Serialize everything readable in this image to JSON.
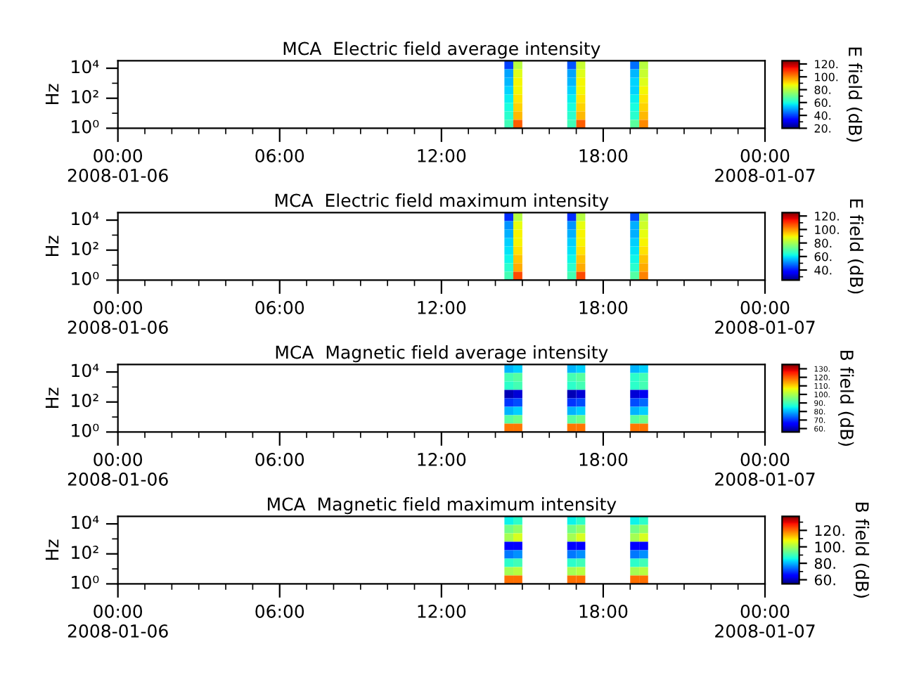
{
  "chart_data": [
    {
      "type": "heatmap",
      "title": "MCA  Electric field average intensity",
      "ylabel": "Hz",
      "clabel": "E field (dB)",
      "log": true,
      "grid": false,
      "x": [
        14.5,
        14.83,
        15.17,
        15.5,
        15.83,
        16.17,
        16.5,
        16.83,
        17.17,
        17.5,
        17.83,
        18.17,
        18.5,
        18.83,
        19.17,
        19.5
      ],
      "xlim": [
        0,
        24
      ],
      "ylim": [
        1,
        31623
      ],
      "xticks": [
        {
          "value": 0,
          "label": "00:00\n2008-01-06"
        },
        {
          "value": 1,
          "label": null
        },
        {
          "value": 2,
          "label": null
        },
        {
          "value": 3,
          "label": null
        },
        {
          "value": 4,
          "label": null
        },
        {
          "value": 5,
          "label": null
        },
        {
          "value": 6,
          "label": "06:00"
        },
        {
          "value": 7,
          "label": null
        },
        {
          "value": 8,
          "label": null
        },
        {
          "value": 9,
          "label": null
        },
        {
          "value": 10,
          "label": null
        },
        {
          "value": 11,
          "label": null
        },
        {
          "value": 12,
          "label": "12:00"
        },
        {
          "value": 13,
          "label": null
        },
        {
          "value": 14,
          "label": null
        },
        {
          "value": 15,
          "label": null
        },
        {
          "value": 16,
          "label": null
        },
        {
          "value": 17,
          "label": null
        },
        {
          "value": 18,
          "label": "18:00"
        },
        {
          "value": 19,
          "label": null
        },
        {
          "value": 20,
          "label": null
        },
        {
          "value": 21,
          "label": null
        },
        {
          "value": 22,
          "label": null
        },
        {
          "value": 23,
          "label": null
        },
        {
          "value": 24,
          "label": "00:00\n2008-01-07"
        }
      ],
      "yticks": [
        {
          "value": 1,
          "label": "10⁰"
        },
        {
          "value": 10,
          "label": null
        },
        {
          "value": 100,
          "label": "10²"
        },
        {
          "value": 1000,
          "label": null
        },
        {
          "value": 10000,
          "label": "10⁴"
        }
      ],
      "clim": [
        20,
        125
      ],
      "cticks": [
        {
          "value": 20,
          "label": "20."
        },
        {
          "value": 30,
          "label": null
        },
        {
          "value": 40,
          "label": "40."
        },
        {
          "value": 50,
          "label": null
        },
        {
          "value": 60,
          "label": "60."
        },
        {
          "value": 70,
          "label": null
        },
        {
          "value": 80,
          "label": "80."
        },
        {
          "value": 90,
          "label": null
        },
        {
          "value": 100,
          "label": "100."
        },
        {
          "value": 110,
          "label": null
        },
        {
          "value": 120,
          "label": "120."
        }
      ],
      "cells": [
        [
          40,
          80,
          null,
          null,
          null,
          null,
          null,
          42,
          82,
          null,
          null,
          null,
          null,
          null,
          45,
          80
        ],
        [
          50,
          85,
          null,
          null,
          null,
          null,
          null,
          50,
          85,
          null,
          null,
          null,
          null,
          null,
          52,
          82
        ],
        [
          52,
          88,
          null,
          null,
          null,
          null,
          null,
          52,
          88,
          null,
          null,
          null,
          null,
          null,
          55,
          85
        ],
        [
          55,
          88,
          null,
          null,
          null,
          null,
          null,
          55,
          88,
          null,
          null,
          null,
          null,
          null,
          55,
          88
        ],
        [
          58,
          90,
          null,
          null,
          null,
          null,
          null,
          58,
          90,
          null,
          null,
          null,
          null,
          null,
          58,
          90
        ],
        [
          60,
          92,
          null,
          null,
          null,
          null,
          null,
          60,
          92,
          null,
          null,
          null,
          null,
          null,
          60,
          92
        ],
        [
          62,
          95,
          null,
          null,
          null,
          null,
          null,
          62,
          95,
          null,
          null,
          null,
          null,
          null,
          62,
          95
        ],
        [
          65,
          105,
          null,
          null,
          null,
          null,
          null,
          65,
          105,
          null,
          null,
          null,
          null,
          null,
          68,
          100
        ]
      ]
    },
    {
      "type": "heatmap",
      "title": "MCA  Electric field maximum intensity",
      "ylabel": "Hz",
      "clabel": "E field (dB)",
      "log": true,
      "grid": false,
      "x": [
        14.5,
        14.83,
        15.17,
        15.5,
        15.83,
        16.17,
        16.5,
        16.83,
        17.17,
        17.5,
        17.83,
        18.17,
        18.5,
        18.83,
        19.17,
        19.5
      ],
      "xlim": [
        0,
        24
      ],
      "ylim": [
        1,
        31623
      ],
      "xticks": [
        {
          "value": 0,
          "label": "00:00\n2008-01-06"
        },
        {
          "value": 1,
          "label": null
        },
        {
          "value": 2,
          "label": null
        },
        {
          "value": 3,
          "label": null
        },
        {
          "value": 4,
          "label": null
        },
        {
          "value": 5,
          "label": null
        },
        {
          "value": 6,
          "label": "06:00"
        },
        {
          "value": 7,
          "label": null
        },
        {
          "value": 8,
          "label": null
        },
        {
          "value": 9,
          "label": null
        },
        {
          "value": 10,
          "label": null
        },
        {
          "value": 11,
          "label": null
        },
        {
          "value": 12,
          "label": "12:00"
        },
        {
          "value": 13,
          "label": null
        },
        {
          "value": 14,
          "label": null
        },
        {
          "value": 15,
          "label": null
        },
        {
          "value": 16,
          "label": null
        },
        {
          "value": 17,
          "label": null
        },
        {
          "value": 18,
          "label": "18:00"
        },
        {
          "value": 19,
          "label": null
        },
        {
          "value": 20,
          "label": null
        },
        {
          "value": 21,
          "label": null
        },
        {
          "value": 22,
          "label": null
        },
        {
          "value": 23,
          "label": null
        },
        {
          "value": 24,
          "label": "00:00\n2008-01-07"
        }
      ],
      "yticks": [
        {
          "value": 1,
          "label": "10⁰"
        },
        {
          "value": 10,
          "label": null
        },
        {
          "value": 100,
          "label": "10²"
        },
        {
          "value": 1000,
          "label": null
        },
        {
          "value": 10000,
          "label": "10⁴"
        }
      ],
      "clim": [
        25,
        125
      ],
      "cticks": [
        {
          "value": 30,
          "label": null
        },
        {
          "value": 40,
          "label": "40."
        },
        {
          "value": 50,
          "label": null
        },
        {
          "value": 60,
          "label": "60."
        },
        {
          "value": 70,
          "label": null
        },
        {
          "value": 80,
          "label": "80."
        },
        {
          "value": 90,
          "label": null
        },
        {
          "value": 100,
          "label": "100."
        },
        {
          "value": 110,
          "label": null
        },
        {
          "value": 120,
          "label": "120."
        }
      ],
      "cells": [
        [
          42,
          82,
          null,
          null,
          null,
          null,
          null,
          42,
          82,
          null,
          null,
          null,
          null,
          null,
          45,
          82
        ],
        [
          52,
          88,
          null,
          null,
          null,
          null,
          null,
          52,
          88,
          null,
          null,
          null,
          null,
          null,
          55,
          85
        ],
        [
          55,
          90,
          null,
          null,
          null,
          null,
          null,
          55,
          90,
          null,
          null,
          null,
          null,
          null,
          55,
          88
        ],
        [
          58,
          90,
          null,
          null,
          null,
          null,
          null,
          58,
          90,
          null,
          null,
          null,
          null,
          null,
          58,
          90
        ],
        [
          60,
          92,
          null,
          null,
          null,
          null,
          null,
          60,
          92,
          null,
          null,
          null,
          null,
          null,
          60,
          92
        ],
        [
          62,
          95,
          null,
          null,
          null,
          null,
          null,
          62,
          95,
          null,
          null,
          null,
          null,
          null,
          62,
          95
        ],
        [
          65,
          98,
          null,
          null,
          null,
          null,
          null,
          65,
          98,
          null,
          null,
          null,
          null,
          null,
          65,
          98
        ],
        [
          68,
          108,
          null,
          null,
          null,
          null,
          null,
          68,
          108,
          null,
          null,
          null,
          null,
          null,
          70,
          102
        ]
      ]
    },
    {
      "type": "heatmap",
      "title": "MCA  Magnetic field average intensity",
      "ylabel": "Hz",
      "clabel": "B field (dB)",
      "log": true,
      "grid": false,
      "x": [
        14.5,
        14.83,
        15.17,
        15.5,
        15.83,
        16.17,
        16.5,
        16.83,
        17.17,
        17.5,
        17.83,
        18.17,
        18.5,
        18.83,
        19.17,
        19.5
      ],
      "xlim": [
        0,
        24
      ],
      "ylim": [
        1,
        31623
      ],
      "xticks": [
        {
          "value": 0,
          "label": "00:00\n2008-01-06"
        },
        {
          "value": 1,
          "label": null
        },
        {
          "value": 2,
          "label": null
        },
        {
          "value": 3,
          "label": null
        },
        {
          "value": 4,
          "label": null
        },
        {
          "value": 5,
          "label": null
        },
        {
          "value": 6,
          "label": "06:00"
        },
        {
          "value": 7,
          "label": null
        },
        {
          "value": 8,
          "label": null
        },
        {
          "value": 9,
          "label": null
        },
        {
          "value": 10,
          "label": null
        },
        {
          "value": 11,
          "label": null
        },
        {
          "value": 12,
          "label": "12:00"
        },
        {
          "value": 13,
          "label": null
        },
        {
          "value": 14,
          "label": null
        },
        {
          "value": 15,
          "label": null
        },
        {
          "value": 16,
          "label": null
        },
        {
          "value": 17,
          "label": null
        },
        {
          "value": 18,
          "label": "18:00"
        },
        {
          "value": 19,
          "label": null
        },
        {
          "value": 20,
          "label": null
        },
        {
          "value": 21,
          "label": null
        },
        {
          "value": 22,
          "label": null
        },
        {
          "value": 23,
          "label": null
        },
        {
          "value": 24,
          "label": "00:00\n2008-01-07"
        }
      ],
      "yticks": [
        {
          "value": 1,
          "label": "10⁰"
        },
        {
          "value": 10,
          "label": null
        },
        {
          "value": 100,
          "label": "10²"
        },
        {
          "value": 1000,
          "label": null
        },
        {
          "value": 10000,
          "label": "10⁴"
        }
      ],
      "clim": [
        56,
        135
      ],
      "cticks": [
        {
          "value": 60,
          "label": "60."
        },
        {
          "value": 70,
          "label": "70."
        },
        {
          "value": 80,
          "label": "80."
        },
        {
          "value": 90,
          "label": "90."
        },
        {
          "value": 100,
          "label": "100."
        },
        {
          "value": 110,
          "label": "110."
        },
        {
          "value": 120,
          "label": "120."
        },
        {
          "value": 130,
          "label": "130."
        }
      ],
      "cells": [
        [
          80,
          82,
          null,
          null,
          null,
          null,
          null,
          80,
          82,
          null,
          null,
          null,
          null,
          null,
          80,
          82
        ],
        [
          90,
          92,
          null,
          null,
          null,
          null,
          null,
          90,
          92,
          null,
          null,
          null,
          null,
          null,
          88,
          90
        ],
        [
          88,
          90,
          null,
          null,
          null,
          null,
          null,
          88,
          90,
          null,
          null,
          null,
          null,
          null,
          88,
          90
        ],
        [
          60,
          62,
          null,
          null,
          null,
          null,
          null,
          60,
          62,
          null,
          null,
          null,
          null,
          null,
          62,
          64
        ],
        [
          70,
          72,
          null,
          null,
          null,
          null,
          null,
          70,
          72,
          null,
          null,
          null,
          null,
          null,
          72,
          74
        ],
        [
          80,
          82,
          null,
          null,
          null,
          null,
          null,
          80,
          82,
          null,
          null,
          null,
          null,
          null,
          80,
          82
        ],
        [
          92,
          94,
          null,
          null,
          null,
          null,
          null,
          92,
          94,
          null,
          null,
          null,
          null,
          null,
          92,
          94
        ],
        [
          118,
          118,
          null,
          null,
          null,
          null,
          null,
          118,
          118,
          null,
          null,
          null,
          null,
          null,
          118,
          118
        ]
      ]
    },
    {
      "type": "heatmap",
      "title": "MCA  Magnetic field maximum intensity",
      "ylabel": "Hz",
      "clabel": "B field (dB)",
      "log": true,
      "grid": false,
      "x": [
        14.5,
        14.83,
        15.17,
        15.5,
        15.83,
        16.17,
        16.5,
        16.83,
        17.17,
        17.5,
        17.83,
        18.17,
        18.5,
        18.83,
        19.17,
        19.5
      ],
      "xlim": [
        0,
        24
      ],
      "ylim": [
        1,
        31623
      ],
      "xticks": [
        {
          "value": 0,
          "label": "00:00\n2008-01-06"
        },
        {
          "value": 1,
          "label": null
        },
        {
          "value": 2,
          "label": null
        },
        {
          "value": 3,
          "label": null
        },
        {
          "value": 4,
          "label": null
        },
        {
          "value": 5,
          "label": null
        },
        {
          "value": 6,
          "label": "06:00"
        },
        {
          "value": 7,
          "label": null
        },
        {
          "value": 8,
          "label": null
        },
        {
          "value": 9,
          "label": null
        },
        {
          "value": 10,
          "label": null
        },
        {
          "value": 11,
          "label": null
        },
        {
          "value": 12,
          "label": "12:00"
        },
        {
          "value": 13,
          "label": null
        },
        {
          "value": 14,
          "label": null
        },
        {
          "value": 15,
          "label": null
        },
        {
          "value": 16,
          "label": null
        },
        {
          "value": 17,
          "label": null
        },
        {
          "value": 18,
          "label": "18:00"
        },
        {
          "value": 19,
          "label": null
        },
        {
          "value": 20,
          "label": null
        },
        {
          "value": 21,
          "label": null
        },
        {
          "value": 22,
          "label": null
        },
        {
          "value": 23,
          "label": null
        },
        {
          "value": 24,
          "label": "00:00\n2008-01-07"
        }
      ],
      "yticks": [
        {
          "value": 1,
          "label": "10⁰"
        },
        {
          "value": 10,
          "label": null
        },
        {
          "value": 100,
          "label": "10²"
        },
        {
          "value": 1000,
          "label": null
        },
        {
          "value": 10000,
          "label": "10⁴"
        }
      ],
      "clim": [
        55,
        137
      ],
      "cticks": [
        {
          "value": 60,
          "label": "60."
        },
        {
          "value": 70,
          "label": null
        },
        {
          "value": 80,
          "label": "80."
        },
        {
          "value": 90,
          "label": null
        },
        {
          "value": 100,
          "label": "100."
        },
        {
          "value": 110,
          "label": null
        },
        {
          "value": 120,
          "label": "120."
        },
        {
          "value": 130,
          "label": null
        }
      ],
      "cells": [
        [
          85,
          88,
          null,
          null,
          null,
          null,
          null,
          85,
          88,
          null,
          null,
          null,
          null,
          null,
          85,
          88
        ],
        [
          95,
          98,
          null,
          null,
          null,
          null,
          null,
          95,
          98,
          null,
          null,
          null,
          null,
          null,
          95,
          98
        ],
        [
          100,
          105,
          null,
          null,
          null,
          null,
          null,
          100,
          105,
          null,
          null,
          null,
          null,
          null,
          100,
          105
        ],
        [
          65,
          65,
          null,
          null,
          null,
          null,
          null,
          65,
          65,
          null,
          null,
          null,
          null,
          null,
          65,
          65
        ],
        [
          75,
          77,
          null,
          null,
          null,
          null,
          null,
          75,
          77,
          null,
          null,
          null,
          null,
          null,
          75,
          77
        ],
        [
          88,
          90,
          null,
          null,
          null,
          null,
          null,
          88,
          90,
          null,
          null,
          null,
          null,
          null,
          88,
          90
        ],
        [
          100,
          102,
          null,
          null,
          null,
          null,
          null,
          100,
          102,
          null,
          null,
          null,
          null,
          null,
          100,
          102
        ],
        [
          120,
          120,
          null,
          null,
          null,
          null,
          null,
          120,
          120,
          null,
          null,
          null,
          null,
          null,
          120,
          120
        ]
      ]
    }
  ]
}
